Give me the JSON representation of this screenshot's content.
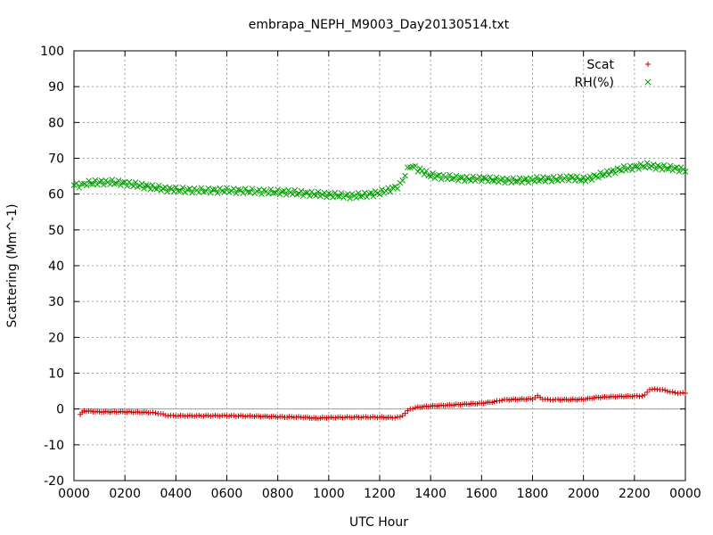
{
  "chart_data": {
    "type": "scatter",
    "title": "embrapa_NEPH_M9003_Day20130514.txt",
    "xlabel": "UTC Hour",
    "ylabel": "Scattering (Mm^-1)",
    "xlim": [
      0,
      24
    ],
    "ylim": [
      -20,
      100
    ],
    "x_unit": "hours since 0000 UTC",
    "x_ticks": [
      "0000",
      "0200",
      "0400",
      "0600",
      "0800",
      "1000",
      "1200",
      "1400",
      "1600",
      "1800",
      "2000",
      "2200",
      "0000"
    ],
    "y_ticks": [
      "-20",
      "-10",
      "0",
      "10",
      "20",
      "30",
      "40",
      "50",
      "60",
      "70",
      "80",
      "90",
      "100"
    ],
    "grid": true,
    "zero_line": true,
    "legend_position": "top-right",
    "series": [
      {
        "name": "Scat",
        "marker": "+",
        "color": "#cc0000",
        "x": [
          0.25,
          0.4,
          0.75,
          1.0,
          1.5,
          2.0,
          2.5,
          3.0,
          3.3,
          3.5,
          3.6,
          4.0,
          5.0,
          6.0,
          7.0,
          7.5,
          8.0,
          9.0,
          9.5,
          10.0,
          11.0,
          12.0,
          12.5,
          12.8,
          13.0,
          13.2,
          13.5,
          14.0,
          14.5,
          15.0,
          15.5,
          16.0,
          16.5,
          16.8,
          17.0,
          17.5,
          18.0,
          18.2,
          18.4,
          18.6,
          19.0,
          19.5,
          20.0,
          20.5,
          21.0,
          21.5,
          22.0,
          22.2,
          22.4,
          22.6,
          23.0,
          23.3,
          23.6,
          24.0
        ],
        "y": [
          -1.5,
          -0.5,
          -0.7,
          -0.8,
          -0.8,
          -0.8,
          -0.9,
          -1.0,
          -1.2,
          -1.5,
          -1.8,
          -1.9,
          -1.9,
          -1.9,
          -2.0,
          -2.1,
          -2.2,
          -2.3,
          -2.6,
          -2.4,
          -2.3,
          -2.3,
          -2.4,
          -2.3,
          -1.2,
          0.0,
          0.5,
          0.8,
          1.0,
          1.2,
          1.4,
          1.6,
          2.0,
          2.5,
          2.6,
          2.7,
          2.8,
          3.6,
          2.8,
          2.6,
          2.6,
          2.6,
          2.7,
          3.2,
          3.4,
          3.5,
          3.6,
          3.6,
          3.8,
          5.5,
          5.5,
          5.0,
          4.5,
          4.4
        ]
      },
      {
        "name": "RH(%)",
        "marker": "x",
        "color": "#00a000",
        "x": [
          0.0,
          0.3,
          0.5,
          1.0,
          1.5,
          2.0,
          2.5,
          3.0,
          3.5,
          4.0,
          5.0,
          6.0,
          7.0,
          8.0,
          8.5,
          9.0,
          9.5,
          10.0,
          10.5,
          11.0,
          11.5,
          12.0,
          12.5,
          12.8,
          13.0,
          13.2,
          13.5,
          14.0,
          14.5,
          15.0,
          15.5,
          16.0,
          16.5,
          17.0,
          17.5,
          18.0,
          18.5,
          19.0,
          19.5,
          20.0,
          20.5,
          21.0,
          21.5,
          22.0,
          22.5,
          23.0,
          23.5,
          24.0
        ],
        "y": [
          62.5,
          62.5,
          63.0,
          63.3,
          63.3,
          63.0,
          62.5,
          62.0,
          61.5,
          61.2,
          61.0,
          61.0,
          60.8,
          60.6,
          60.5,
          60.2,
          60.0,
          59.8,
          59.6,
          59.5,
          59.8,
          60.4,
          61.5,
          62.5,
          65.5,
          68.0,
          67.0,
          65.2,
          64.8,
          64.5,
          64.2,
          64.3,
          64.0,
          63.8,
          63.8,
          64.0,
          64.2,
          64.2,
          64.6,
          64.0,
          65.0,
          66.0,
          67.0,
          67.5,
          68.0,
          67.5,
          67.2,
          66.8
        ]
      }
    ]
  }
}
